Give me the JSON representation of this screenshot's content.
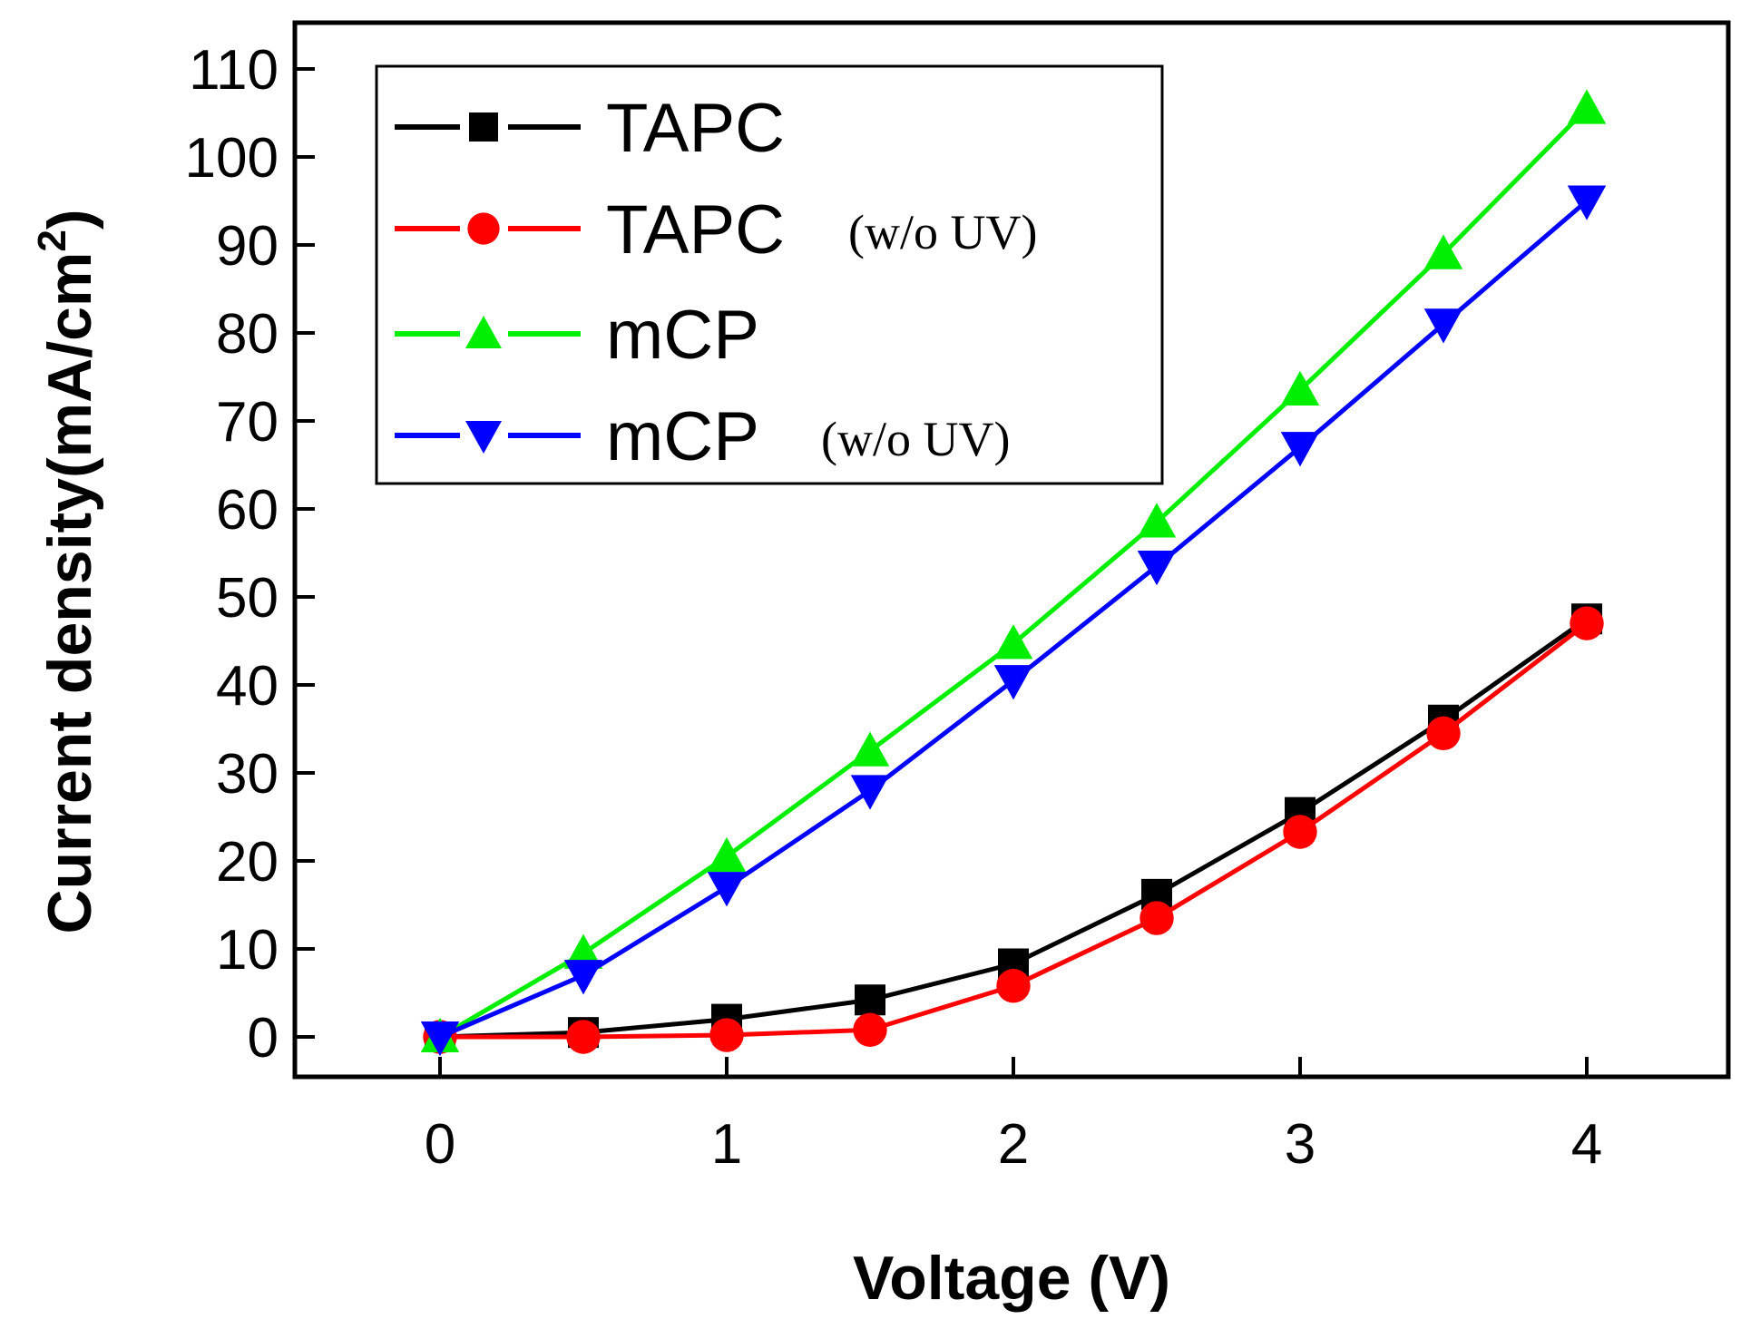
{
  "chart_data": {
    "type": "line",
    "xlabel": "Voltage (V)",
    "ylabel": "Current density(mA/cm",
    "ylabel_superscript": "2",
    "ylabel_close": ")",
    "xlim": [
      -0.5,
      4.5
    ],
    "ylim": [
      -5,
      110
    ],
    "xticks": [
      "0",
      "1",
      "2",
      "3",
      "4"
    ],
    "xtick_values": [
      0,
      1,
      2,
      3,
      4
    ],
    "yticks": [
      "0",
      "10",
      "20",
      "30",
      "40",
      "50",
      "60",
      "70",
      "80",
      "90",
      "100",
      "110"
    ],
    "ytick_values": [
      0,
      10,
      20,
      30,
      40,
      50,
      60,
      70,
      80,
      90,
      100,
      110
    ],
    "x": [
      0,
      0.5,
      1,
      1.5,
      2,
      2.5,
      3,
      3.5,
      4
    ],
    "legend_position": "top-left",
    "series": [
      {
        "name": "TAPC",
        "note": "",
        "color": "#000000",
        "marker": "square",
        "values": [
          0,
          0.5,
          2,
          4.2,
          8.3,
          16.2,
          25.5,
          36,
          47.5
        ]
      },
      {
        "name": "TAPC",
        "note": "(w/o UV)",
        "color": "#ff0000",
        "marker": "circle",
        "values": [
          0,
          0,
          0.2,
          0.8,
          5.8,
          13.5,
          23.3,
          34.5,
          47
        ]
      },
      {
        "name": "mCP",
        "note": "",
        "color": "#00ee00",
        "marker": "triangle-up",
        "values": [
          0,
          9.5,
          20.5,
          32.5,
          44.7,
          58.5,
          73.5,
          89,
          105.5
        ]
      },
      {
        "name": "mCP",
        "note": "(w/o UV)",
        "color": "#0000ff",
        "marker": "triangle-down",
        "values": [
          0,
          7,
          17,
          28,
          40.5,
          53.5,
          67,
          81,
          95
        ]
      }
    ]
  }
}
